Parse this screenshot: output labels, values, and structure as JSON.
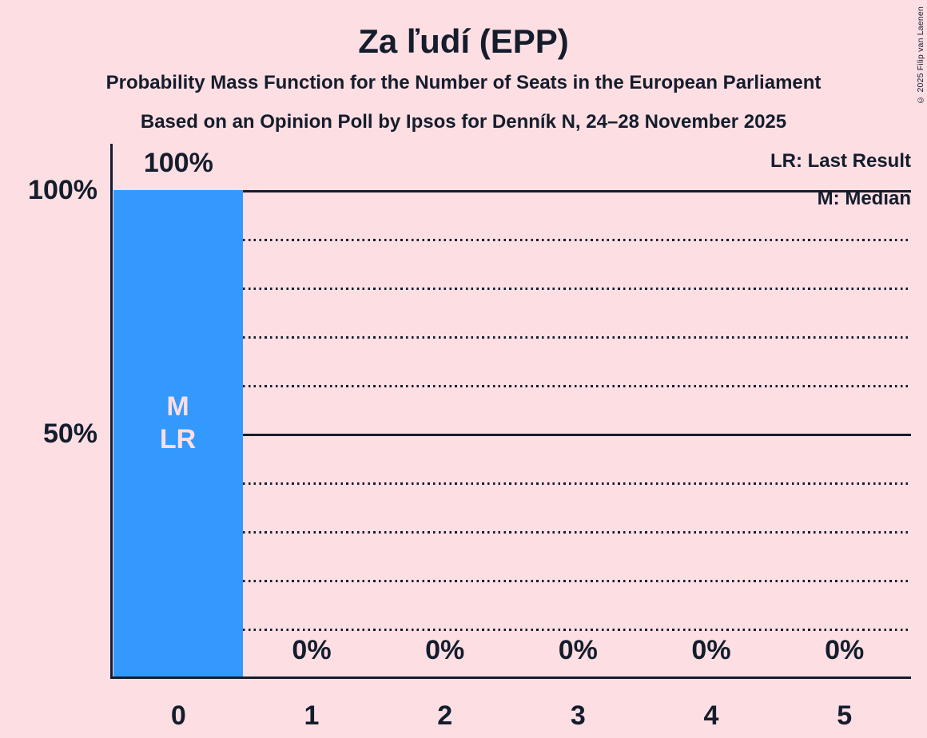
{
  "title": "Za ľudí (EPP)",
  "subtitle1": "Probability Mass Function for the Number of Seats in the European Parliament",
  "subtitle2": "Based on an Opinion Poll by Ipsos for Denník N, 24–28 November 2025",
  "copyright": "© 2025 Filip van Laenen",
  "legend": {
    "lr": "LR: Last Result",
    "m": "M: Median"
  },
  "y_axis": {
    "tick_100": "100%",
    "tick_50": "50%"
  },
  "colors": {
    "background": "#fcdee3",
    "text": "#151d2c",
    "bar": "#3499fd",
    "bar_label": "#fcdee3"
  },
  "chart_data": {
    "type": "bar",
    "title": "Za ľudí (EPP)",
    "categories": [
      "0",
      "1",
      "2",
      "3",
      "4",
      "5"
    ],
    "values": [
      100,
      0,
      0,
      0,
      0,
      0
    ],
    "value_labels": [
      "100%",
      "0%",
      "0%",
      "0%",
      "0%",
      "0%"
    ],
    "ylim": [
      0,
      100
    ],
    "ytick_labels": [
      "100%",
      "50%"
    ],
    "ytick_values": [
      100,
      50
    ],
    "gridlines_solid_pct": [
      100,
      50
    ],
    "gridlines_dotted_pct": [
      90,
      80,
      70,
      60,
      40,
      30,
      20,
      10
    ],
    "grid": true,
    "legend_position": "top-right",
    "annotations": {
      "category": "0",
      "lines": [
        "M",
        "LR"
      ]
    }
  }
}
